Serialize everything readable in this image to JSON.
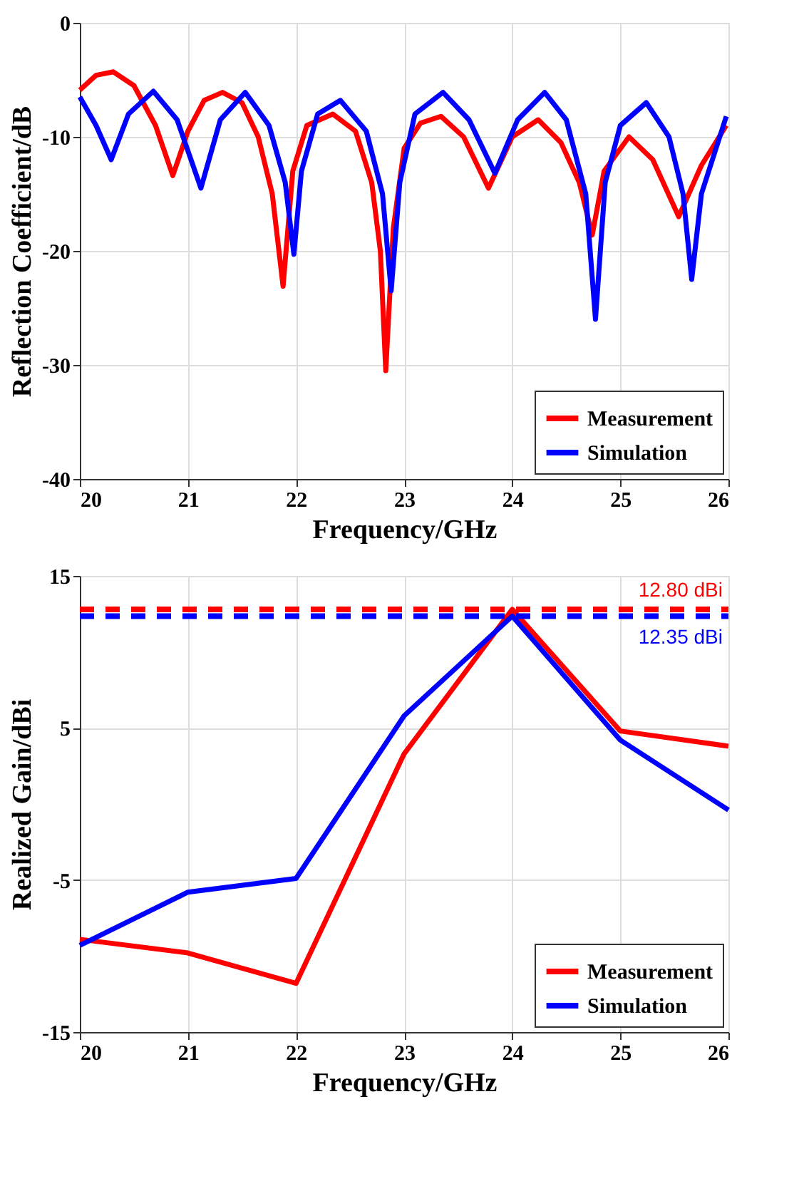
{
  "chart_data": [
    {
      "type": "line",
      "xlabel": "Frequency/GHz",
      "ylabel": "Reflection Coefficient/dB",
      "xlim": [
        20,
        26
      ],
      "xticks": [
        20,
        21,
        22,
        23,
        24,
        25,
        26
      ],
      "ylim": [
        -40,
        0
      ],
      "yticks": [
        -40,
        -30,
        -20,
        -10,
        0
      ],
      "grid": true,
      "legend": "bottom right",
      "line_style": "solid",
      "series": [
        {
          "name": "Measurement",
          "color": "#ff0000",
          "x": [
            20,
            20.15,
            20.31,
            20.5,
            20.7,
            20.86,
            21.0,
            21.15,
            21.32,
            21.5,
            21.65,
            21.78,
            21.88,
            21.97,
            22.1,
            22.34,
            22.55,
            22.7,
            22.78,
            22.83,
            22.9,
            23.0,
            23.15,
            23.34,
            23.55,
            23.78,
            24.0,
            24.24,
            24.45,
            24.62,
            24.74,
            24.85,
            25.08,
            25.3,
            25.54,
            25.75,
            25.98
          ],
          "values": [
            -5.9,
            -4.6,
            -4.3,
            -5.5,
            -9,
            -13.4,
            -9.5,
            -6.8,
            -6.1,
            -7,
            -10,
            -15,
            -23.1,
            -13,
            -9,
            -8,
            -9.5,
            -14,
            -20,
            -30.5,
            -18,
            -11,
            -8.8,
            -8.2,
            -10,
            -14.5,
            -10,
            -8.5,
            -10.5,
            -14,
            -18.6,
            -13,
            -10,
            -12,
            -17,
            -12.5,
            -9
          ]
        },
        {
          "name": "Simulation",
          "color": "#0000ff",
          "x": [
            20,
            20.15,
            20.29,
            20.45,
            20.68,
            20.9,
            21.12,
            21.3,
            21.53,
            21.75,
            21.9,
            21.98,
            22.05,
            22.2,
            22.41,
            22.65,
            22.8,
            22.88,
            22.96,
            23.1,
            23.36,
            23.6,
            23.84,
            24.05,
            24.3,
            24.5,
            24.68,
            24.77,
            24.86,
            25.0,
            25.24,
            25.45,
            25.58,
            25.66,
            25.75,
            25.98
          ],
          "values": [
            -6.5,
            -9,
            -12,
            -8,
            -6,
            -8.5,
            -14.5,
            -8.5,
            -6.1,
            -9,
            -14,
            -20.3,
            -13,
            -8,
            -6.8,
            -9.5,
            -15,
            -23.5,
            -14,
            -8,
            -6.1,
            -8.5,
            -13.2,
            -8.5,
            -6.1,
            -8.5,
            -15,
            -26,
            -14,
            -9,
            -7,
            -10,
            -15,
            -22.5,
            -15,
            -8.2
          ]
        }
      ]
    },
    {
      "type": "line",
      "xlabel": "Frequency/GHz",
      "ylabel": "Realized Gain/dBi",
      "xlim": [
        20,
        26
      ],
      "xticks": [
        20,
        21,
        22,
        23,
        24,
        25,
        26
      ],
      "ylim": [
        -15,
        15
      ],
      "yticks": [
        -15,
        -5,
        5,
        15
      ],
      "grid": true,
      "legend": "bottom right",
      "line_style": "solid",
      "x": [
        20,
        21,
        22,
        23,
        24,
        25,
        26
      ],
      "series": [
        {
          "name": "Measurement",
          "color": "#ff0000",
          "values": [
            -8.9,
            -9.8,
            -11.8,
            3.3,
            12.8,
            4.8,
            3.8
          ]
        },
        {
          "name": "Simulation",
          "color": "#0000ff",
          "values": [
            -9.3,
            -5.8,
            -4.9,
            5.8,
            12.35,
            4.2,
            -0.4
          ]
        }
      ],
      "ref_lines": [
        {
          "axis": "y",
          "value": 12.8,
          "label": "12.80 dBi",
          "color": "#ff0000",
          "line_style": "dashed"
        },
        {
          "axis": "y",
          "value": 12.35,
          "label": "12.35 dBi",
          "color": "#0000ff",
          "line_style": "dashed"
        }
      ]
    }
  ]
}
